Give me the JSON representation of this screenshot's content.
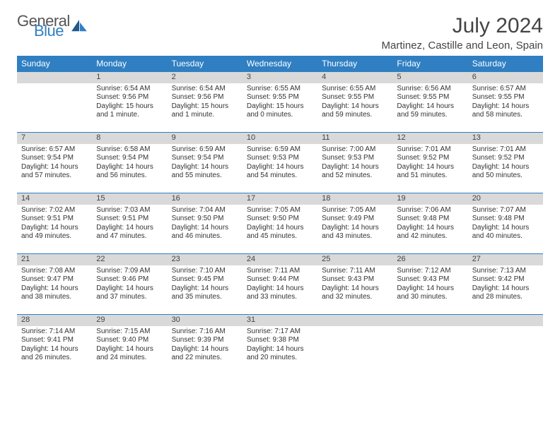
{
  "logo": {
    "text1": "General",
    "text2": "Blue"
  },
  "title": "July 2024",
  "location": "Martinez, Castille and Leon, Spain",
  "colors": {
    "header_bg": "#2f7fc2",
    "header_fg": "#ffffff",
    "daynum_bg": "#d9d9d9",
    "border": "#2f7fc2",
    "text": "#333333",
    "logo_gray": "#555555",
    "logo_blue": "#2f7fc2"
  },
  "fonts": {
    "title_size": 30,
    "location_size": 15,
    "header_size": 12,
    "daynum_size": 11,
    "cell_size": 10
  },
  "weekdays": [
    "Sunday",
    "Monday",
    "Tuesday",
    "Wednesday",
    "Thursday",
    "Friday",
    "Saturday"
  ],
  "weeks": [
    {
      "nums": [
        "",
        "1",
        "2",
        "3",
        "4",
        "5",
        "6"
      ],
      "cells": [
        "",
        "Sunrise: 6:54 AM\nSunset: 9:56 PM\nDaylight: 15 hours and 1 minute.",
        "Sunrise: 6:54 AM\nSunset: 9:56 PM\nDaylight: 15 hours and 1 minute.",
        "Sunrise: 6:55 AM\nSunset: 9:55 PM\nDaylight: 15 hours and 0 minutes.",
        "Sunrise: 6:55 AM\nSunset: 9:55 PM\nDaylight: 14 hours and 59 minutes.",
        "Sunrise: 6:56 AM\nSunset: 9:55 PM\nDaylight: 14 hours and 59 minutes.",
        "Sunrise: 6:57 AM\nSunset: 9:55 PM\nDaylight: 14 hours and 58 minutes."
      ]
    },
    {
      "nums": [
        "7",
        "8",
        "9",
        "10",
        "11",
        "12",
        "13"
      ],
      "cells": [
        "Sunrise: 6:57 AM\nSunset: 9:54 PM\nDaylight: 14 hours and 57 minutes.",
        "Sunrise: 6:58 AM\nSunset: 9:54 PM\nDaylight: 14 hours and 56 minutes.",
        "Sunrise: 6:59 AM\nSunset: 9:54 PM\nDaylight: 14 hours and 55 minutes.",
        "Sunrise: 6:59 AM\nSunset: 9:53 PM\nDaylight: 14 hours and 54 minutes.",
        "Sunrise: 7:00 AM\nSunset: 9:53 PM\nDaylight: 14 hours and 52 minutes.",
        "Sunrise: 7:01 AM\nSunset: 9:52 PM\nDaylight: 14 hours and 51 minutes.",
        "Sunrise: 7:01 AM\nSunset: 9:52 PM\nDaylight: 14 hours and 50 minutes."
      ]
    },
    {
      "nums": [
        "14",
        "15",
        "16",
        "17",
        "18",
        "19",
        "20"
      ],
      "cells": [
        "Sunrise: 7:02 AM\nSunset: 9:51 PM\nDaylight: 14 hours and 49 minutes.",
        "Sunrise: 7:03 AM\nSunset: 9:51 PM\nDaylight: 14 hours and 47 minutes.",
        "Sunrise: 7:04 AM\nSunset: 9:50 PM\nDaylight: 14 hours and 46 minutes.",
        "Sunrise: 7:05 AM\nSunset: 9:50 PM\nDaylight: 14 hours and 45 minutes.",
        "Sunrise: 7:05 AM\nSunset: 9:49 PM\nDaylight: 14 hours and 43 minutes.",
        "Sunrise: 7:06 AM\nSunset: 9:48 PM\nDaylight: 14 hours and 42 minutes.",
        "Sunrise: 7:07 AM\nSunset: 9:48 PM\nDaylight: 14 hours and 40 minutes."
      ]
    },
    {
      "nums": [
        "21",
        "22",
        "23",
        "24",
        "25",
        "26",
        "27"
      ],
      "cells": [
        "Sunrise: 7:08 AM\nSunset: 9:47 PM\nDaylight: 14 hours and 38 minutes.",
        "Sunrise: 7:09 AM\nSunset: 9:46 PM\nDaylight: 14 hours and 37 minutes.",
        "Sunrise: 7:10 AM\nSunset: 9:45 PM\nDaylight: 14 hours and 35 minutes.",
        "Sunrise: 7:11 AM\nSunset: 9:44 PM\nDaylight: 14 hours and 33 minutes.",
        "Sunrise: 7:11 AM\nSunset: 9:43 PM\nDaylight: 14 hours and 32 minutes.",
        "Sunrise: 7:12 AM\nSunset: 9:43 PM\nDaylight: 14 hours and 30 minutes.",
        "Sunrise: 7:13 AM\nSunset: 9:42 PM\nDaylight: 14 hours and 28 minutes."
      ]
    },
    {
      "nums": [
        "28",
        "29",
        "30",
        "31",
        "",
        "",
        ""
      ],
      "cells": [
        "Sunrise: 7:14 AM\nSunset: 9:41 PM\nDaylight: 14 hours and 26 minutes.",
        "Sunrise: 7:15 AM\nSunset: 9:40 PM\nDaylight: 14 hours and 24 minutes.",
        "Sunrise: 7:16 AM\nSunset: 9:39 PM\nDaylight: 14 hours and 22 minutes.",
        "Sunrise: 7:17 AM\nSunset: 9:38 PM\nDaylight: 14 hours and 20 minutes.",
        "",
        "",
        ""
      ]
    }
  ]
}
